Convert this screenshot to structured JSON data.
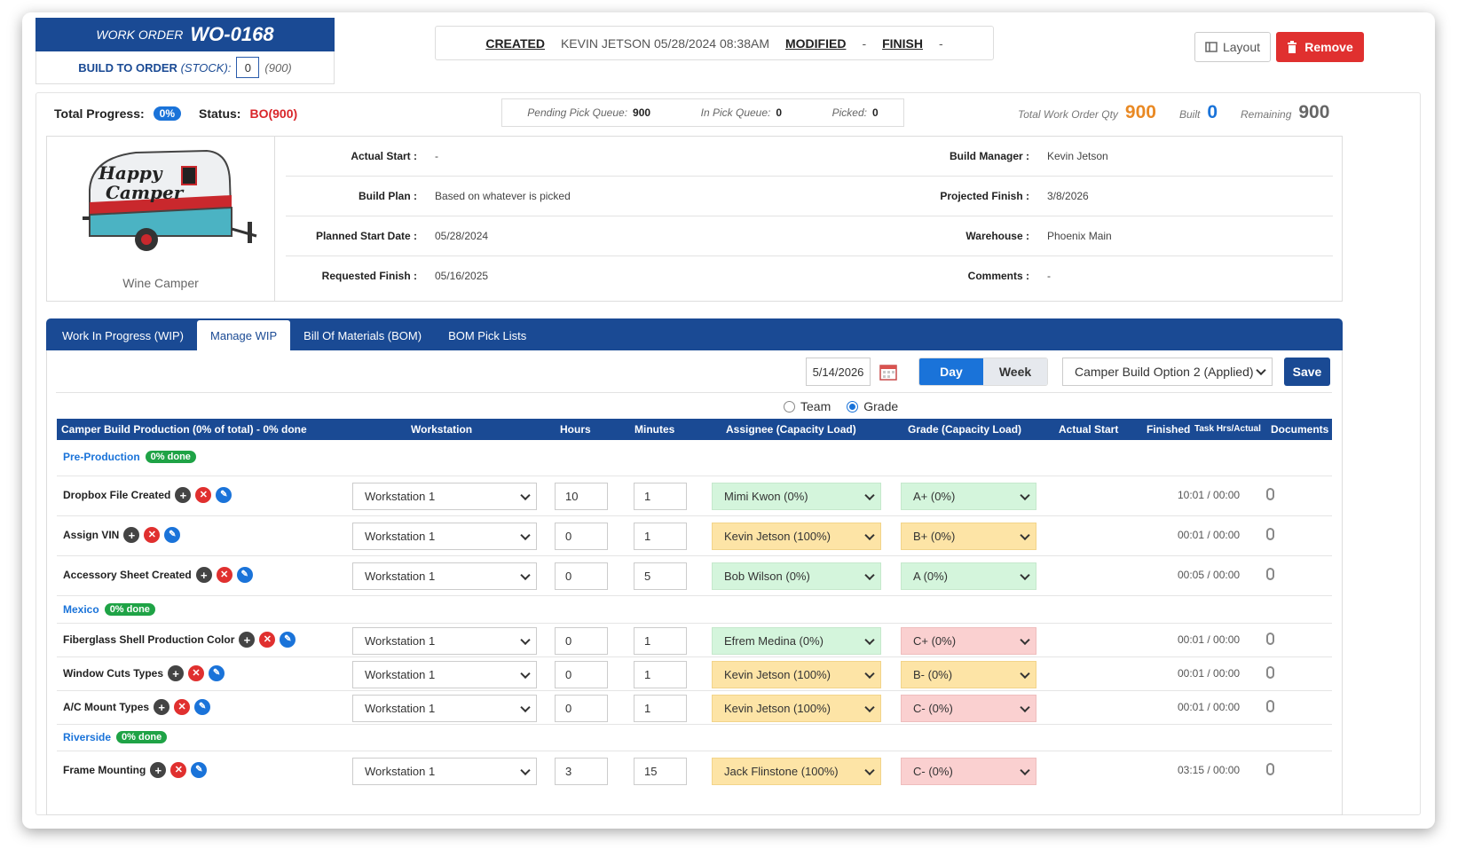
{
  "header": {
    "wo_label": "WORK ORDER",
    "wo_number": "WO-0168",
    "build_to_order": "BUILD TO ORDER",
    "stock": "(STOCK):",
    "stock_value": "0",
    "stock_total": "(900)"
  },
  "audit": {
    "created_label": "CREATED",
    "created_value": "KEVIN JETSON 05/28/2024 08:38AM",
    "modified_label": "MODIFIED",
    "modified_value": "-",
    "finish_label": "FINISH",
    "finish_value": "-"
  },
  "actions": {
    "layout": "Layout",
    "remove": "Remove"
  },
  "summary": {
    "progress_label": "Total Progress:",
    "progress_value": "0%",
    "status_label": "Status:",
    "status_value": "BO(900)",
    "pending_label": "Pending Pick Queue:",
    "pending_value": "900",
    "inqueue_label": "In Pick Queue:",
    "inqueue_value": "0",
    "picked_label": "Picked:",
    "picked_value": "0",
    "total_label": "Total Work Order Qty",
    "total_value": "900",
    "built_label": "Built",
    "built_value": "0",
    "remaining_label": "Remaining",
    "remaining_value": "900"
  },
  "product": {
    "name": "Wine Camper",
    "logo_line1": "Happy",
    "logo_line2": "Camper"
  },
  "details": {
    "actual_start_label": "Actual Start :",
    "actual_start": "-",
    "build_plan_label": "Build Plan :",
    "build_plan": "Based on whatever is picked",
    "planned_start_label": "Planned Start Date :",
    "planned_start": "05/28/2024",
    "requested_finish_label": "Requested Finish :",
    "requested_finish": "05/16/2025",
    "build_manager_label": "Build Manager :",
    "build_manager": "Kevin Jetson",
    "projected_finish_label": "Projected Finish :",
    "projected_finish": "3/8/2026",
    "warehouse_label": "Warehouse :",
    "warehouse": "Phoenix Main",
    "comments_label": "Comments :",
    "comments": "-"
  },
  "tabs": [
    "Work In Progress (WIP)",
    "Manage WIP",
    "Bill Of Materials (BOM)",
    "BOM Pick Lists"
  ],
  "toolbar": {
    "date": "5/14/2026",
    "day": "Day",
    "week": "Week",
    "option": "Camper Build Option 2 (Applied)",
    "save": "Save",
    "team": "Team",
    "grade": "Grade"
  },
  "columns": {
    "name": "Camper Build Production (0% of total) - 0% done",
    "workstation": "Workstation",
    "hours": "Hours",
    "minutes": "Minutes",
    "assignee": "Assignee (Capacity Load)",
    "grade": "Grade (Capacity Load)",
    "actual_start": "Actual Start",
    "finished": "Finished",
    "task_hrs": "Task Hrs/Actual",
    "documents": "Documents"
  },
  "groups": [
    {
      "name": "Pre-Production",
      "done": "0% done"
    },
    {
      "name": "Mexico",
      "done": "0% done"
    },
    {
      "name": "Riverside",
      "done": "0% done"
    }
  ],
  "tasks": [
    {
      "name": "Dropbox File Created",
      "workstation": "Workstation 1",
      "hours": "10",
      "minutes": "1",
      "assignee": "Mimi Kwon (0%)",
      "grade": "A+ (0%)",
      "time": "10:01 / 00:00"
    },
    {
      "name": "Assign VIN",
      "workstation": "Workstation 1",
      "hours": "0",
      "minutes": "1",
      "assignee": "Kevin Jetson (100%)",
      "grade": "B+ (0%)",
      "time": "00:01 / 00:00"
    },
    {
      "name": "Accessory Sheet Created",
      "workstation": "Workstation 1",
      "hours": "0",
      "minutes": "5",
      "assignee": "Bob Wilson (0%)",
      "grade": "A (0%)",
      "time": "00:05 / 00:00"
    },
    {
      "name": "Fiberglass Shell Production Color",
      "workstation": "Workstation 1",
      "hours": "0",
      "minutes": "1",
      "assignee": "Efrem Medina (0%)",
      "grade": "C+ (0%)",
      "time": "00:01 / 00:00"
    },
    {
      "name": "Window Cuts Types",
      "workstation": "Workstation 1",
      "hours": "0",
      "minutes": "1",
      "assignee": "Kevin Jetson (100%)",
      "grade": "B- (0%)",
      "time": "00:01 / 00:00"
    },
    {
      "name": "A/C Mount Types",
      "workstation": "Workstation 1",
      "hours": "0",
      "minutes": "1",
      "assignee": "Kevin Jetson (100%)",
      "grade": "C- (0%)",
      "time": "00:01 / 00:00"
    },
    {
      "name": "Frame Mounting",
      "workstation": "Workstation 1",
      "hours": "3",
      "minutes": "15",
      "assignee": "Jack Flinstone (100%)",
      "grade": "C- (0%)",
      "time": "03:15 / 00:00"
    }
  ],
  "colors": {
    "brand": "#1a4a94",
    "accent": "#1a73d9",
    "danger": "#e0302f",
    "load_green": "#d4f5dc",
    "load_yellow": "#fde4a6",
    "load_red": "#fad0d0"
  }
}
